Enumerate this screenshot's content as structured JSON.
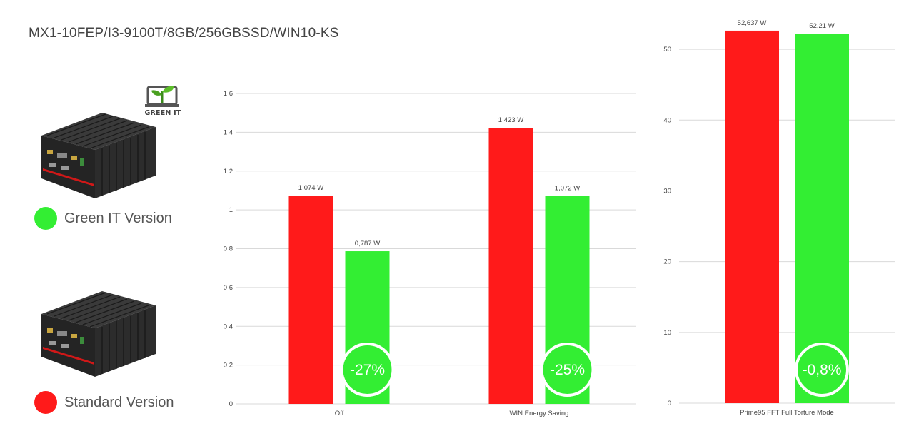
{
  "title": "MX1-10FEP/I3-9100T/8GB/256GBSSD/WIN10-KS",
  "badge": {
    "text": "GREEN IT",
    "icon": "laptop-leaf-icon"
  },
  "legend": [
    {
      "label": "Green IT Version",
      "color": "#33ee33"
    },
    {
      "label": "Standard Version",
      "color": "#ff1a1a"
    }
  ],
  "colors": {
    "standard": "#ff1a1a",
    "green": "#33ee33",
    "grid": "#d9d9d9",
    "axis_text": "#444444"
  },
  "chart_data": [
    {
      "type": "bar",
      "categories": [
        "Off",
        "WIN Energy Saving"
      ],
      "series": [
        {
          "key": "standard",
          "values": [
            1.074,
            1.423
          ],
          "labels": [
            "1,074 W",
            "1,423 W"
          ]
        },
        {
          "key": "green",
          "values": [
            0.787,
            1.072
          ],
          "labels": [
            "0,787 W",
            "1,072 W"
          ]
        }
      ],
      "ylim": [
        0,
        1.6
      ],
      "yticks": [
        0,
        0.2,
        0.4,
        0.6,
        0.8,
        1,
        1.2,
        1.4,
        1.6
      ],
      "ytick_labels": [
        "0",
        "0,2",
        "0,4",
        "0,6",
        "0,8",
        "1",
        "1,2",
        "1,4",
        "1,6"
      ],
      "savings": [
        "-27%",
        "-25%"
      ],
      "grid": true
    },
    {
      "type": "bar",
      "categories": [
        "Prime95 FFT Full Torture Mode"
      ],
      "series": [
        {
          "key": "standard",
          "values": [
            52.637
          ],
          "labels": [
            "52,637 W"
          ]
        },
        {
          "key": "green",
          "values": [
            52.21
          ],
          "labels": [
            "52,21 W"
          ]
        }
      ],
      "ylim": [
        0,
        55
      ],
      "yticks": [
        0,
        10,
        20,
        30,
        40,
        50
      ],
      "ytick_labels": [
        "0",
        "10",
        "20",
        "30",
        "40",
        "50"
      ],
      "savings": [
        "-0,8%"
      ],
      "grid": true
    }
  ]
}
